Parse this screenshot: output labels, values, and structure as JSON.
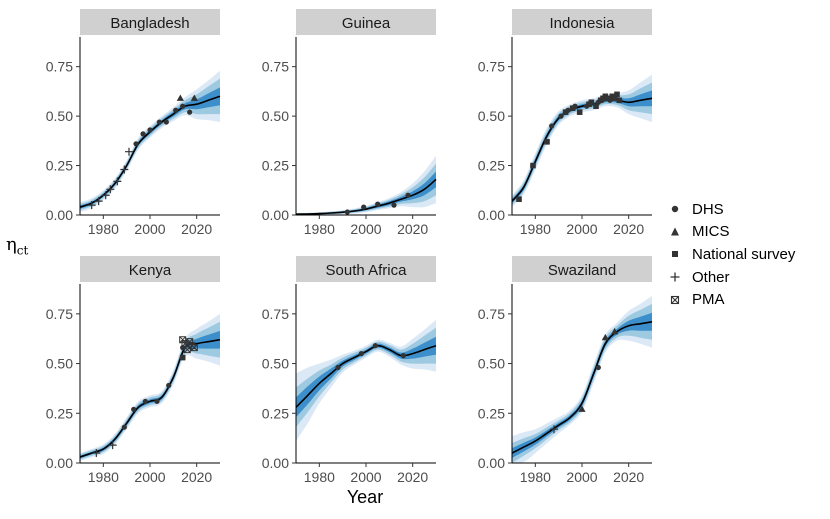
{
  "y_axis_label": "η",
  "y_axis_label_sub": "ct",
  "x_axis_label": "Year",
  "legend": [
    {
      "label": "DHS",
      "shape": "circle"
    },
    {
      "label": "MICS",
      "shape": "triangle"
    },
    {
      "label": "National survey",
      "shape": "square"
    },
    {
      "label": "Other",
      "shape": "plus"
    },
    {
      "label": "PMA",
      "shape": "boxed-x"
    }
  ],
  "colors": {
    "band_outer": "#dbe8f6",
    "band_mid": "#9ecae1",
    "band_inner": "#3d8fcb",
    "median_line": "#000000",
    "strip_bg": "#d0d0d0",
    "points": "#333333"
  },
  "chart_data": {
    "type": "line",
    "layout": "facets 2x3",
    "x_ticks": [
      1980,
      2000,
      2020
    ],
    "y_ticks": [
      "0.00",
      "0.25",
      "0.50",
      "0.75"
    ],
    "xlim": [
      1970,
      2030
    ],
    "ylim": [
      0,
      0.9
    ],
    "bands": "shaded uncertainty intervals (light, medium, dark blue) around median line",
    "facets": [
      {
        "country": "Bangladesh",
        "years": [
          1970,
          1975,
          1980,
          1985,
          1990,
          1995,
          2000,
          2005,
          2010,
          2015,
          2020,
          2025,
          2030
        ],
        "median": [
          0.04,
          0.06,
          0.1,
          0.16,
          0.25,
          0.36,
          0.42,
          0.47,
          0.51,
          0.55,
          0.56,
          0.58,
          0.6
        ],
        "halfwidths": [
          [
            0.008,
            0.008,
            0.008,
            0.009,
            0.009,
            0.01,
            0.01,
            0.01,
            0.012,
            0.015,
            0.025,
            0.035,
            0.045
          ],
          [
            0.016,
            0.016,
            0.016,
            0.017,
            0.018,
            0.02,
            0.02,
            0.02,
            0.024,
            0.03,
            0.05,
            0.07,
            0.09
          ],
          [
            0.025,
            0.025,
            0.025,
            0.026,
            0.027,
            0.03,
            0.03,
            0.03,
            0.035,
            0.045,
            0.075,
            0.1,
            0.13
          ]
        ],
        "obs": [
          {
            "x": 1975,
            "y": 0.05,
            "s": "plus"
          },
          {
            "x": 1978,
            "y": 0.07,
            "s": "plus"
          },
          {
            "x": 1981,
            "y": 0.1,
            "s": "plus"
          },
          {
            "x": 1983,
            "y": 0.13,
            "s": "plus"
          },
          {
            "x": 1986,
            "y": 0.17,
            "s": "plus"
          },
          {
            "x": 1989,
            "y": 0.23,
            "s": "plus"
          },
          {
            "x": 1991,
            "y": 0.32,
            "s": "plus"
          },
          {
            "x": 1994,
            "y": 0.36,
            "s": "circle"
          },
          {
            "x": 1997,
            "y": 0.41,
            "s": "circle"
          },
          {
            "x": 2000,
            "y": 0.43,
            "s": "circle"
          },
          {
            "x": 2004,
            "y": 0.47,
            "s": "circle"
          },
          {
            "x": 2007,
            "y": 0.47,
            "s": "circle"
          },
          {
            "x": 2011,
            "y": 0.53,
            "s": "circle"
          },
          {
            "x": 2013,
            "y": 0.59,
            "s": "triangle"
          },
          {
            "x": 2014,
            "y": 0.55,
            "s": "circle"
          },
          {
            "x": 2017,
            "y": 0.52,
            "s": "circle"
          },
          {
            "x": 2019,
            "y": 0.59,
            "s": "triangle"
          }
        ]
      },
      {
        "country": "Guinea",
        "years": [
          1970,
          1975,
          1980,
          1985,
          1990,
          1995,
          2000,
          2005,
          2010,
          2015,
          2020,
          2025,
          2030
        ],
        "median": [
          0.004,
          0.005,
          0.007,
          0.01,
          0.014,
          0.02,
          0.03,
          0.045,
          0.06,
          0.08,
          0.1,
          0.13,
          0.18
        ],
        "halfwidths": [
          [
            0.003,
            0.003,
            0.003,
            0.003,
            0.004,
            0.005,
            0.006,
            0.008,
            0.01,
            0.012,
            0.02,
            0.03,
            0.04
          ],
          [
            0.005,
            0.005,
            0.005,
            0.006,
            0.007,
            0.009,
            0.011,
            0.014,
            0.018,
            0.024,
            0.04,
            0.06,
            0.08
          ],
          [
            0.006,
            0.006,
            0.007,
            0.008,
            0.01,
            0.013,
            0.016,
            0.02,
            0.026,
            0.036,
            0.06,
            0.09,
            0.12
          ]
        ],
        "obs": [
          {
            "x": 1992,
            "y": 0.015,
            "s": "circle"
          },
          {
            "x": 1999,
            "y": 0.04,
            "s": "circle"
          },
          {
            "x": 2005,
            "y": 0.055,
            "s": "circle"
          },
          {
            "x": 2012,
            "y": 0.05,
            "s": "circle"
          },
          {
            "x": 2018,
            "y": 0.1,
            "s": "circle"
          }
        ]
      },
      {
        "country": "Indonesia",
        "years": [
          1970,
          1975,
          1980,
          1985,
          1990,
          1995,
          2000,
          2005,
          2010,
          2015,
          2020,
          2025,
          2030
        ],
        "median": [
          0.07,
          0.14,
          0.27,
          0.4,
          0.49,
          0.53,
          0.55,
          0.56,
          0.58,
          0.58,
          0.57,
          0.58,
          0.59
        ],
        "halfwidths": [
          [
            0.01,
            0.012,
            0.014,
            0.014,
            0.012,
            0.01,
            0.01,
            0.01,
            0.01,
            0.012,
            0.02,
            0.03,
            0.04
          ],
          [
            0.02,
            0.024,
            0.028,
            0.028,
            0.024,
            0.02,
            0.02,
            0.02,
            0.02,
            0.024,
            0.04,
            0.06,
            0.08
          ],
          [
            0.03,
            0.036,
            0.042,
            0.042,
            0.036,
            0.03,
            0.03,
            0.03,
            0.03,
            0.036,
            0.06,
            0.09,
            0.12
          ]
        ],
        "obs": [
          {
            "x": 1973,
            "y": 0.08,
            "s": "square"
          },
          {
            "x": 1979,
            "y": 0.25,
            "s": "square"
          },
          {
            "x": 1985,
            "y": 0.37,
            "s": "square"
          },
          {
            "x": 1987,
            "y": 0.45,
            "s": "circle"
          },
          {
            "x": 1991,
            "y": 0.5,
            "s": "circle"
          },
          {
            "x": 1993,
            "y": 0.52,
            "s": "square"
          },
          {
            "x": 1994,
            "y": 0.53,
            "s": "circle"
          },
          {
            "x": 1996,
            "y": 0.54,
            "s": "square"
          },
          {
            "x": 1997,
            "y": 0.55,
            "s": "circle"
          },
          {
            "x": 1999,
            "y": 0.52,
            "s": "square"
          },
          {
            "x": 2002,
            "y": 0.55,
            "s": "circle"
          },
          {
            "x": 2003,
            "y": 0.56,
            "s": "square"
          },
          {
            "x": 2004,
            "y": 0.57,
            "s": "square"
          },
          {
            "x": 2006,
            "y": 0.55,
            "s": "square"
          },
          {
            "x": 2007,
            "y": 0.57,
            "s": "circle"
          },
          {
            "x": 2008,
            "y": 0.58,
            "s": "square"
          },
          {
            "x": 2009,
            "y": 0.59,
            "s": "square"
          },
          {
            "x": 2010,
            "y": 0.6,
            "s": "square"
          },
          {
            "x": 2011,
            "y": 0.59,
            "s": "square"
          },
          {
            "x": 2012,
            "y": 0.58,
            "s": "circle"
          },
          {
            "x": 2013,
            "y": 0.6,
            "s": "square"
          },
          {
            "x": 2014,
            "y": 0.59,
            "s": "square"
          },
          {
            "x": 2015,
            "y": 0.61,
            "s": "square"
          },
          {
            "x": 2016,
            "y": 0.58,
            "s": "square"
          }
        ]
      },
      {
        "country": "Kenya",
        "years": [
          1970,
          1975,
          1980,
          1985,
          1990,
          1995,
          2000,
          2005,
          2010,
          2015,
          2020,
          2025,
          2030
        ],
        "median": [
          0.03,
          0.05,
          0.07,
          0.12,
          0.2,
          0.28,
          0.31,
          0.33,
          0.43,
          0.58,
          0.6,
          0.61,
          0.62
        ],
        "halfwidths": [
          [
            0.007,
            0.007,
            0.008,
            0.009,
            0.01,
            0.01,
            0.01,
            0.01,
            0.012,
            0.015,
            0.025,
            0.035,
            0.045
          ],
          [
            0.014,
            0.014,
            0.016,
            0.018,
            0.02,
            0.02,
            0.02,
            0.02,
            0.024,
            0.03,
            0.05,
            0.07,
            0.09
          ],
          [
            0.02,
            0.021,
            0.024,
            0.027,
            0.03,
            0.03,
            0.03,
            0.03,
            0.036,
            0.045,
            0.075,
            0.1,
            0.13
          ]
        ],
        "obs": [
          {
            "x": 1977,
            "y": 0.05,
            "s": "plus"
          },
          {
            "x": 1984,
            "y": 0.09,
            "s": "plus"
          },
          {
            "x": 1989,
            "y": 0.18,
            "s": "circle"
          },
          {
            "x": 1993,
            "y": 0.27,
            "s": "circle"
          },
          {
            "x": 1998,
            "y": 0.31,
            "s": "circle"
          },
          {
            "x": 2003,
            "y": 0.31,
            "s": "circle"
          },
          {
            "x": 2008,
            "y": 0.39,
            "s": "circle"
          },
          {
            "x": 2014,
            "y": 0.53,
            "s": "square"
          },
          {
            "x": 2014,
            "y": 0.58,
            "s": "circle"
          },
          {
            "x": 2014,
            "y": 0.62,
            "s": "boxed-x"
          },
          {
            "x": 2015,
            "y": 0.6,
            "s": "boxed-x"
          },
          {
            "x": 2016,
            "y": 0.57,
            "s": "boxed-x"
          },
          {
            "x": 2017,
            "y": 0.61,
            "s": "boxed-x"
          },
          {
            "x": 2018,
            "y": 0.59,
            "s": "boxed-x"
          },
          {
            "x": 2019,
            "y": 0.58,
            "s": "boxed-x"
          }
        ]
      },
      {
        "country": "South Africa",
        "years": [
          1970,
          1975,
          1980,
          1985,
          1990,
          1995,
          2000,
          2005,
          2010,
          2015,
          2020,
          2025,
          2030
        ],
        "median": [
          0.28,
          0.34,
          0.4,
          0.45,
          0.5,
          0.53,
          0.56,
          0.59,
          0.57,
          0.54,
          0.55,
          0.57,
          0.59
        ],
        "halfwidths": [
          [
            0.05,
            0.045,
            0.035,
            0.025,
            0.015,
            0.012,
            0.01,
            0.01,
            0.012,
            0.015,
            0.025,
            0.035,
            0.045
          ],
          [
            0.1,
            0.085,
            0.065,
            0.045,
            0.03,
            0.024,
            0.02,
            0.02,
            0.024,
            0.03,
            0.05,
            0.07,
            0.09
          ],
          [
            0.17,
            0.14,
            0.1,
            0.07,
            0.045,
            0.035,
            0.03,
            0.03,
            0.035,
            0.045,
            0.075,
            0.1,
            0.13
          ]
        ],
        "obs": [
          {
            "x": 1988,
            "y": 0.48,
            "s": "circle"
          },
          {
            "x": 1998,
            "y": 0.55,
            "s": "circle"
          },
          {
            "x": 2004,
            "y": 0.59,
            "s": "circle"
          },
          {
            "x": 2016,
            "y": 0.54,
            "s": "circle"
          }
        ]
      },
      {
        "country": "Swaziland",
        "years": [
          1970,
          1975,
          1980,
          1985,
          1990,
          1995,
          2000,
          2005,
          2010,
          2015,
          2020,
          2025,
          2030
        ],
        "median": [
          0.05,
          0.08,
          0.11,
          0.15,
          0.19,
          0.23,
          0.3,
          0.45,
          0.6,
          0.66,
          0.69,
          0.7,
          0.71
        ],
        "halfwidths": [
          [
            0.025,
            0.022,
            0.018,
            0.015,
            0.012,
            0.012,
            0.014,
            0.016,
            0.015,
            0.015,
            0.025,
            0.035,
            0.045
          ],
          [
            0.05,
            0.044,
            0.036,
            0.03,
            0.024,
            0.024,
            0.028,
            0.032,
            0.03,
            0.03,
            0.05,
            0.07,
            0.09
          ],
          [
            0.085,
            0.075,
            0.06,
            0.05,
            0.04,
            0.036,
            0.042,
            0.048,
            0.045,
            0.045,
            0.075,
            0.1,
            0.13
          ]
        ],
        "obs": [
          {
            "x": 1988,
            "y": 0.17,
            "s": "plus"
          },
          {
            "x": 2000,
            "y": 0.27,
            "s": "triangle"
          },
          {
            "x": 2007,
            "y": 0.48,
            "s": "circle"
          },
          {
            "x": 2010,
            "y": 0.63,
            "s": "triangle"
          },
          {
            "x": 2014,
            "y": 0.66,
            "s": "triangle"
          }
        ]
      }
    ]
  }
}
